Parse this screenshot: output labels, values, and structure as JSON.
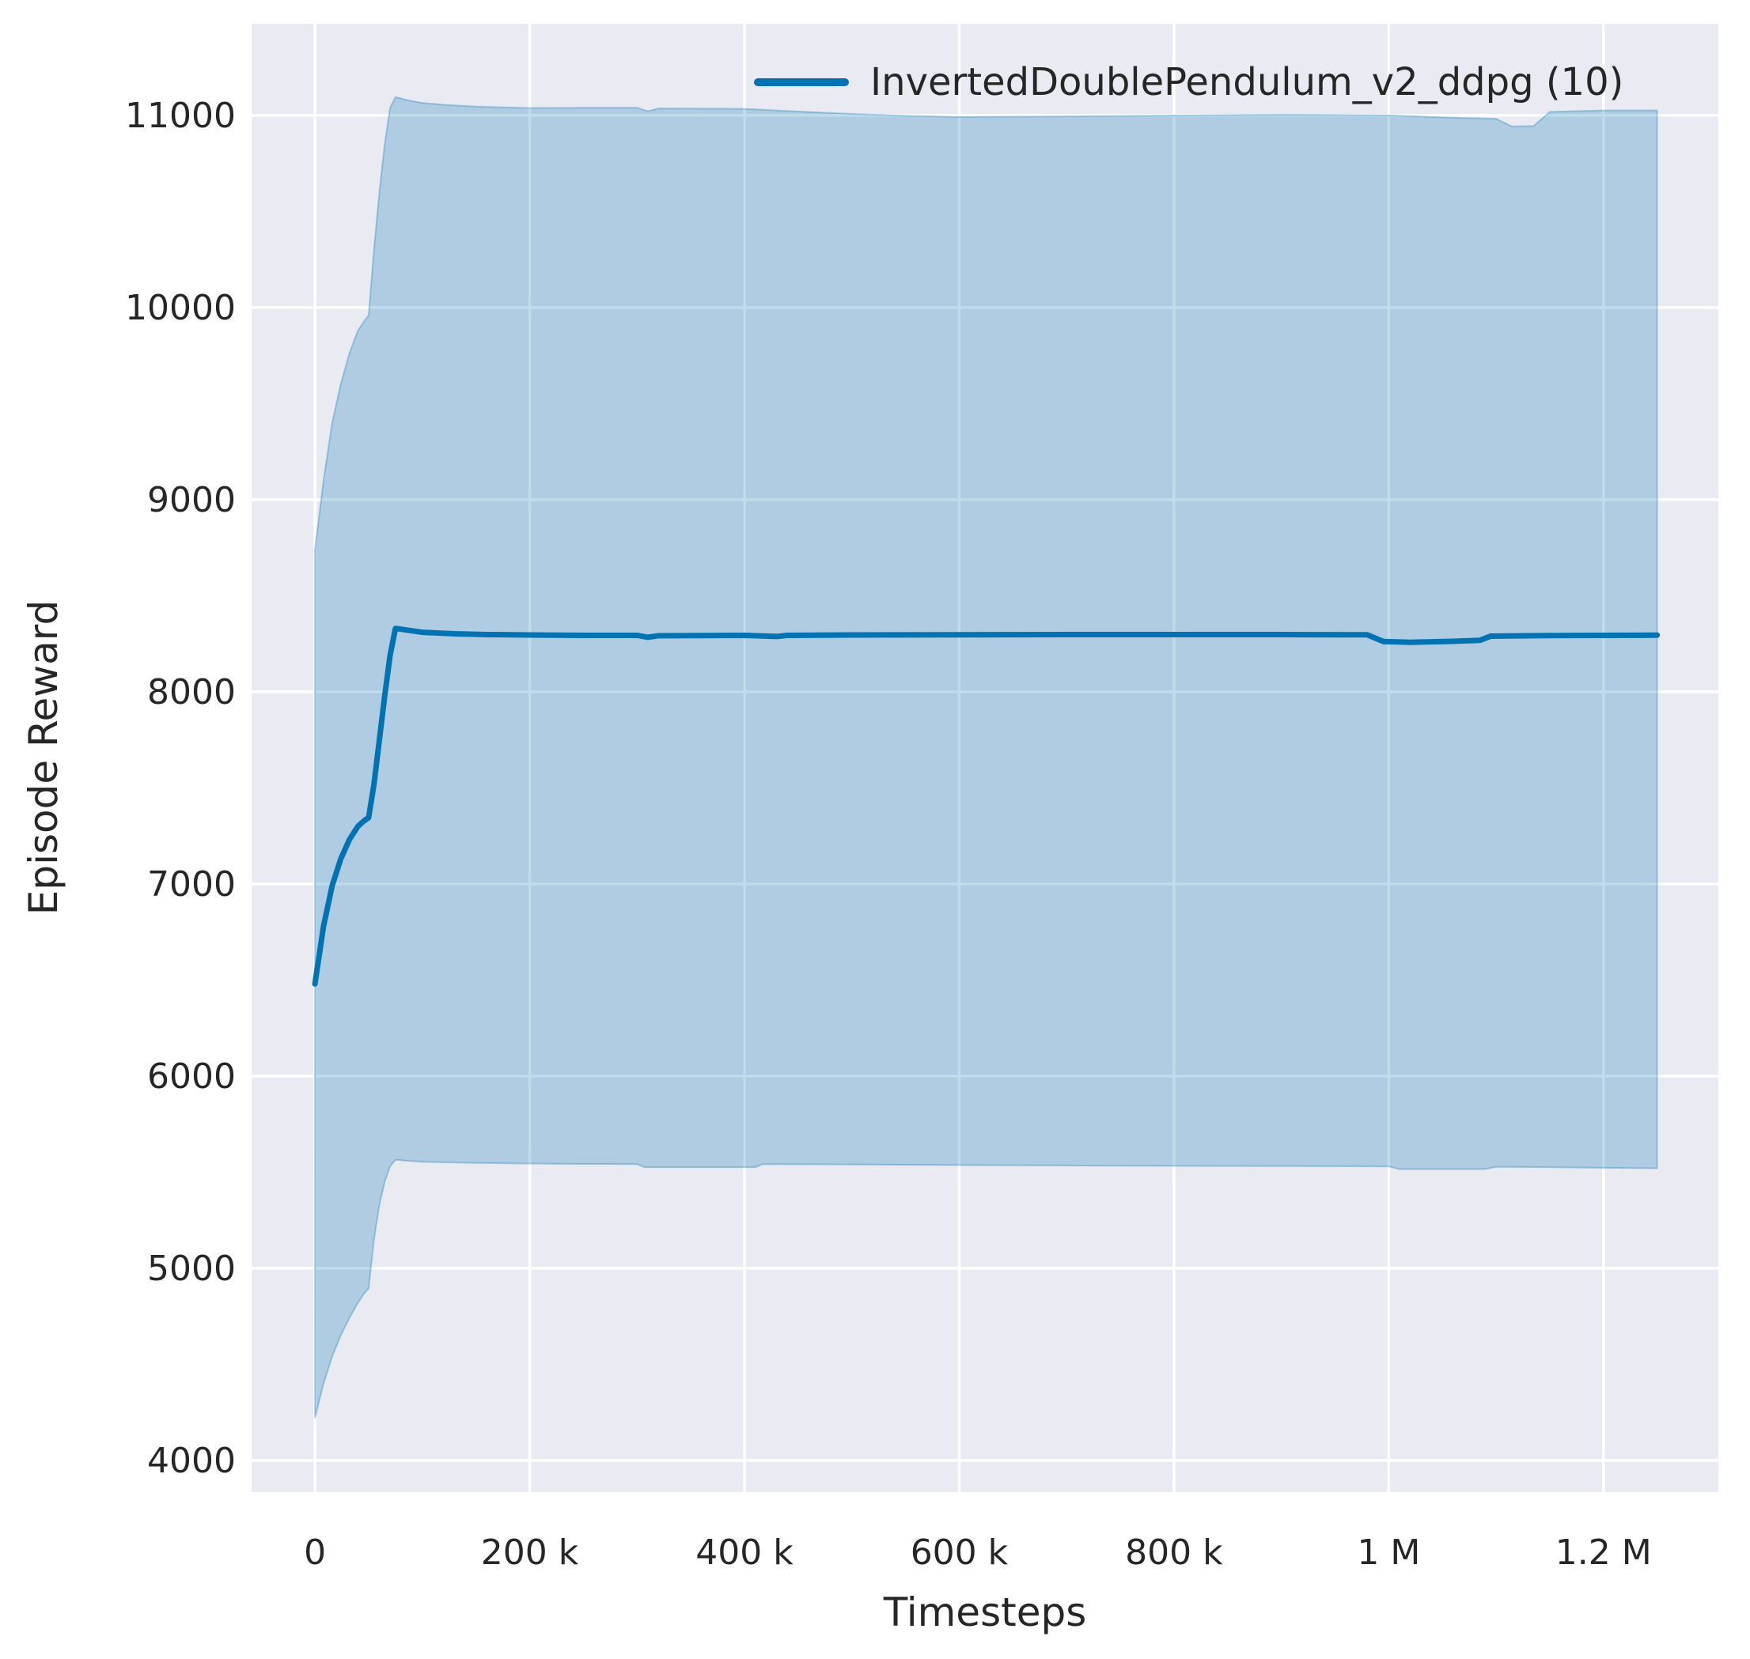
{
  "chart_data": {
    "type": "line",
    "title": "",
    "xlabel": "Timesteps",
    "ylabel": "Episode Reward",
    "grid": true,
    "legend_position": "upper right",
    "legend": [
      {
        "label": "InvertedDoublePendulum_v2_ddpg (10)",
        "color": "#0173b2"
      }
    ],
    "background": "#eaeaf2",
    "gridline_color": "#ffffff",
    "text_color": "#262626",
    "xlim": [
      -59000,
      1307000
    ],
    "ylim": [
      3835,
      11477
    ],
    "xticks": [
      {
        "value": 0,
        "label": "0"
      },
      {
        "value": 200000,
        "label": "200 k"
      },
      {
        "value": 400000,
        "label": "400 k"
      },
      {
        "value": 600000,
        "label": "600 k"
      },
      {
        "value": 800000,
        "label": "800 k"
      },
      {
        "value": 1000000,
        "label": "1 M"
      },
      {
        "value": 1200000,
        "label": "1.2 M"
      }
    ],
    "yticks": [
      {
        "value": 4000,
        "label": "4000"
      },
      {
        "value": 5000,
        "label": "5000"
      },
      {
        "value": 6000,
        "label": "6000"
      },
      {
        "value": 7000,
        "label": "7000"
      },
      {
        "value": 8000,
        "label": "8000"
      },
      {
        "value": 9000,
        "label": "9000"
      },
      {
        "value": 10000,
        "label": "10000"
      },
      {
        "value": 11000,
        "label": "11000"
      }
    ],
    "series": [
      {
        "name": "InvertedDoublePendulum_v2_ddpg (10)",
        "color": "#0173b2",
        "line_width": 7,
        "band_alpha": 0.25,
        "mean": [
          [
            0,
            6480
          ],
          [
            8000,
            6780
          ],
          [
            16000,
            6990
          ],
          [
            24000,
            7130
          ],
          [
            32000,
            7230
          ],
          [
            40000,
            7300
          ],
          [
            46000,
            7330
          ],
          [
            50000,
            7345
          ],
          [
            55000,
            7520
          ],
          [
            60000,
            7750
          ],
          [
            65000,
            7980
          ],
          [
            70000,
            8190
          ],
          [
            75000,
            8330
          ],
          [
            85000,
            8322
          ],
          [
            100000,
            8310
          ],
          [
            130000,
            8302
          ],
          [
            160000,
            8298
          ],
          [
            200000,
            8296
          ],
          [
            250000,
            8294
          ],
          [
            300000,
            8294
          ],
          [
            310000,
            8284
          ],
          [
            320000,
            8292
          ],
          [
            400000,
            8294
          ],
          [
            430000,
            8288
          ],
          [
            440000,
            8294
          ],
          [
            500000,
            8296
          ],
          [
            600000,
            8297
          ],
          [
            700000,
            8298
          ],
          [
            800000,
            8298
          ],
          [
            900000,
            8298
          ],
          [
            980000,
            8297
          ],
          [
            995000,
            8262
          ],
          [
            1020000,
            8258
          ],
          [
            1060000,
            8263
          ],
          [
            1085000,
            8268
          ],
          [
            1095000,
            8290
          ],
          [
            1150000,
            8293
          ],
          [
            1200000,
            8294
          ],
          [
            1250000,
            8295
          ]
        ],
        "band_upper": [
          [
            0,
            8740
          ],
          [
            8000,
            9100
          ],
          [
            16000,
            9400
          ],
          [
            24000,
            9600
          ],
          [
            32000,
            9760
          ],
          [
            40000,
            9880
          ],
          [
            46000,
            9930
          ],
          [
            50000,
            9960
          ],
          [
            55000,
            10300
          ],
          [
            60000,
            10600
          ],
          [
            65000,
            10850
          ],
          [
            70000,
            11040
          ],
          [
            75000,
            11095
          ],
          [
            80000,
            11088
          ],
          [
            90000,
            11075
          ],
          [
            100000,
            11065
          ],
          [
            120000,
            11055
          ],
          [
            150000,
            11046
          ],
          [
            200000,
            11038
          ],
          [
            250000,
            11040
          ],
          [
            300000,
            11040
          ],
          [
            310000,
            11022
          ],
          [
            320000,
            11036
          ],
          [
            400000,
            11034
          ],
          [
            450000,
            11020
          ],
          [
            500000,
            11008
          ],
          [
            550000,
            10998
          ],
          [
            600000,
            10992
          ],
          [
            700000,
            10995
          ],
          [
            800000,
            10999
          ],
          [
            900000,
            11004
          ],
          [
            1000000,
            11000
          ],
          [
            1050000,
            10990
          ],
          [
            1100000,
            10982
          ],
          [
            1115000,
            10942
          ],
          [
            1135000,
            10945
          ],
          [
            1150000,
            11018
          ],
          [
            1200000,
            11026
          ],
          [
            1250000,
            11026
          ]
        ],
        "band_lower": [
          [
            0,
            4220
          ],
          [
            8000,
            4400
          ],
          [
            16000,
            4540
          ],
          [
            24000,
            4650
          ],
          [
            32000,
            4740
          ],
          [
            40000,
            4820
          ],
          [
            46000,
            4870
          ],
          [
            50000,
            4895
          ],
          [
            55000,
            5150
          ],
          [
            60000,
            5330
          ],
          [
            65000,
            5450
          ],
          [
            70000,
            5530
          ],
          [
            75000,
            5565
          ],
          [
            85000,
            5560
          ],
          [
            100000,
            5554
          ],
          [
            150000,
            5548
          ],
          [
            200000,
            5545
          ],
          [
            250000,
            5543
          ],
          [
            300000,
            5542
          ],
          [
            307000,
            5526
          ],
          [
            410000,
            5526
          ],
          [
            417000,
            5542
          ],
          [
            500000,
            5540
          ],
          [
            600000,
            5537
          ],
          [
            700000,
            5535
          ],
          [
            800000,
            5533
          ],
          [
            900000,
            5532
          ],
          [
            1000000,
            5530
          ],
          [
            1010000,
            5516
          ],
          [
            1090000,
            5516
          ],
          [
            1100000,
            5528
          ],
          [
            1150000,
            5526
          ],
          [
            1200000,
            5523
          ],
          [
            1250000,
            5520
          ]
        ]
      }
    ]
  }
}
